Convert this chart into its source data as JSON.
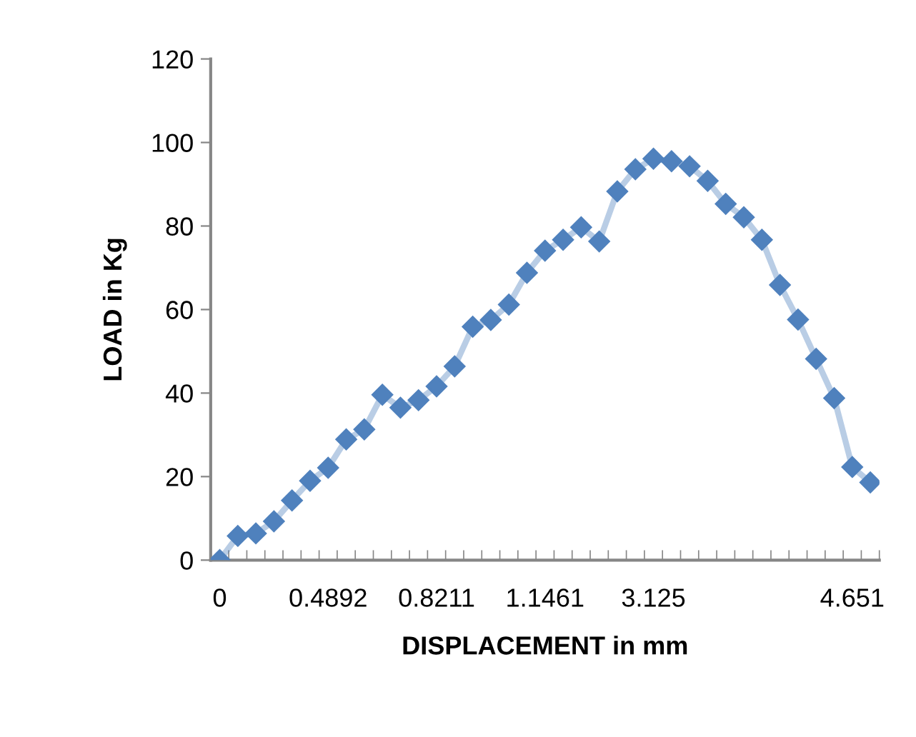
{
  "chart_data": {
    "type": "line",
    "xlabel": "DISPLACEMENT in mm",
    "ylabel": "LOAD in Kg",
    "categories": [
      "0",
      null,
      null,
      null,
      null,
      null,
      "0.4892",
      null,
      null,
      null,
      null,
      null,
      "0.8211",
      null,
      null,
      null,
      null,
      null,
      "1.1461",
      null,
      null,
      null,
      null,
      null,
      "3.125",
      null,
      null,
      null,
      null,
      null,
      null,
      null,
      null,
      null,
      null,
      "4.651",
      null
    ],
    "series": [
      {
        "color": "#4f81bd",
        "values": [
          0,
          5.8,
          6.4,
          9.3,
          14.3,
          19.0,
          22.1,
          28.9,
          31.3,
          39.6,
          36.5,
          38.3,
          41.6,
          46.4,
          55.9,
          57.5,
          61.2,
          68.8,
          74.1,
          76.7,
          79.7,
          76.3,
          88.3,
          93.6,
          96.1,
          95.5,
          94.3,
          90.8,
          85.3,
          82.1,
          76.7,
          65.9,
          57.6,
          48.2,
          38.8,
          22.3,
          18.6
        ]
      }
    ],
    "ylim": [
      0,
      120
    ],
    "yticks": [
      0,
      20,
      40,
      60,
      80,
      100,
      120
    ],
    "grid": false,
    "legend": false,
    "marker": "diamond",
    "line_style": "solid"
  }
}
